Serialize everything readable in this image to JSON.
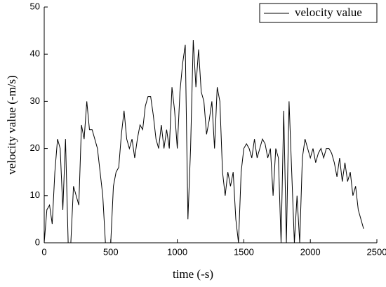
{
  "chart_data": {
    "type": "line",
    "x_label": "time (-s)",
    "y_label": "velocity value (-m/s)",
    "x": [
      0,
      20,
      40,
      60,
      80,
      100,
      120,
      140,
      160,
      180,
      200,
      220,
      240,
      260,
      280,
      300,
      320,
      340,
      360,
      380,
      400,
      420,
      440,
      460,
      480,
      500,
      520,
      540,
      560,
      580,
      600,
      620,
      640,
      660,
      680,
      700,
      720,
      740,
      760,
      780,
      800,
      820,
      840,
      860,
      880,
      900,
      920,
      940,
      960,
      980,
      1000,
      1020,
      1040,
      1060,
      1080,
      1100,
      1120,
      1140,
      1160,
      1180,
      1200,
      1220,
      1240,
      1260,
      1280,
      1300,
      1320,
      1340,
      1360,
      1380,
      1400,
      1420,
      1440,
      1460,
      1480,
      1500,
      1520,
      1540,
      1560,
      1580,
      1600,
      1620,
      1640,
      1660,
      1680,
      1700,
      1720,
      1740,
      1760,
      1780,
      1800,
      1820,
      1840,
      1860,
      1880,
      1900,
      1920,
      1940,
      1960,
      1980,
      2000,
      2020,
      2040,
      2060,
      2080,
      2100,
      2120,
      2140,
      2160,
      2180,
      2200,
      2220,
      2240,
      2260,
      2280,
      2300,
      2320,
      2340,
      2360,
      2380,
      2400
    ],
    "series": [
      {
        "name": "velocity value",
        "color": "#000000",
        "values": [
          0,
          7,
          8,
          4,
          15,
          22,
          20,
          7,
          22,
          0,
          0,
          12,
          10,
          8,
          25,
          22,
          30,
          24,
          24,
          22,
          20,
          15,
          10,
          0,
          0,
          0,
          12,
          15,
          16,
          23,
          28,
          22,
          20,
          22,
          18,
          22,
          25,
          24,
          29,
          31,
          31,
          27,
          22,
          20,
          25,
          20,
          24,
          20,
          33,
          28,
          20,
          32,
          38,
          42,
          5,
          20,
          43,
          33,
          41,
          32,
          30,
          23,
          26,
          30,
          20,
          33,
          30,
          15,
          10,
          15,
          12,
          15,
          5,
          0,
          15,
          20,
          21,
          20,
          18,
          22,
          18,
          20,
          22,
          21,
          18,
          20,
          10,
          20,
          18,
          0,
          28,
          0,
          30,
          15,
          0,
          10,
          0,
          18,
          22,
          20,
          18,
          20,
          17,
          19,
          20,
          18,
          20,
          20,
          19,
          17,
          14,
          18,
          13,
          17,
          13,
          15,
          10,
          12,
          7,
          5,
          3
        ]
      }
    ],
    "xlim": [
      0,
      2500
    ],
    "xticks": [
      0,
      500,
      1000,
      1500,
      2000,
      2500
    ],
    "ylim": [
      0,
      50
    ],
    "yticks": [
      0,
      10,
      20,
      30,
      40,
      50
    ],
    "legend": "upper right"
  }
}
